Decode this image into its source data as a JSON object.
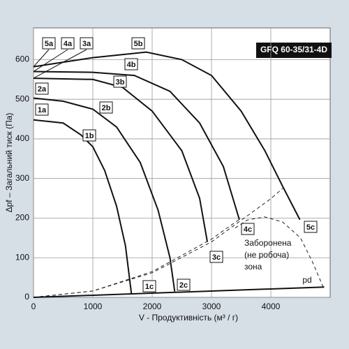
{
  "chart_data": {
    "type": "line",
    "title": "GFQ 60-35/31-4D",
    "x_label": "V - Продуктивність (м³ / г)",
    "y_label": "Δpf – Загальний тиск (Па)",
    "xlim": [
      0,
      5000
    ],
    "xticks": [
      0,
      1000,
      2000,
      3000,
      4000
    ],
    "ylim": [
      0,
      680
    ],
    "yticks": [
      0,
      100,
      200,
      300,
      400,
      500,
      600
    ],
    "grid": true,
    "series": [
      {
        "color": "#111111",
        "labels": [
          "1a",
          "1b",
          "1c"
        ],
        "x": [
          0,
          500,
          800,
          1000,
          1200,
          1400,
          1550,
          1650
        ],
        "values": [
          448,
          440,
          410,
          380,
          320,
          230,
          130,
          10
        ]
      },
      {
        "color": "#111111",
        "labels": [
          "2a",
          "2b",
          "2c"
        ],
        "x": [
          0,
          500,
          1000,
          1400,
          1800,
          2100,
          2300,
          2380
        ],
        "values": [
          503,
          495,
          475,
          430,
          340,
          220,
          100,
          15
        ]
      },
      {
        "color": "#111111",
        "labels": [
          "3a",
          "3b",
          "3c"
        ],
        "x": [
          0,
          1000,
          1500,
          2000,
          2500,
          2800,
          2930
        ],
        "values": [
          553,
          550,
          530,
          470,
          370,
          250,
          140
        ]
      },
      {
        "color": "#111111",
        "labels": [
          "4a",
          "4b",
          "4c"
        ],
        "x": [
          0,
          1000,
          1700,
          2300,
          2800,
          3200,
          3470
        ],
        "values": [
          570,
          568,
          560,
          520,
          440,
          330,
          196
        ]
      },
      {
        "color": "#111111",
        "labels": [
          "5a",
          "5b",
          "5c"
        ],
        "x": [
          0,
          1000,
          1900,
          2500,
          3000,
          3500,
          3900,
          4200,
          4490
        ],
        "values": [
          582,
          605,
          619,
          600,
          560,
          470,
          370,
          280,
          196
        ]
      }
    ],
    "pd_line": {
      "label": "pd",
      "x": [
        0,
        4900
      ],
      "values": [
        0,
        26
      ]
    },
    "dashed_lines": [
      {
        "x": [
          0,
          1000,
          2000,
          3000,
          4000,
          4200
        ],
        "values": [
          0,
          16,
          62,
          140,
          249,
          275
        ]
      },
      {
        "x": [
          0,
          1000,
          2000,
          3000,
          3500
        ],
        "values": [
          0,
          16,
          65,
          147,
          200
        ]
      },
      {
        "x": [
          3400,
          3600,
          3900,
          4200,
          4500,
          4700,
          4900
        ],
        "values": [
          175,
          195,
          203,
          190,
          150,
          90,
          20
        ]
      }
    ],
    "zone_text": [
      "Заборонена",
      "(не робоча)",
      "зона"
    ]
  }
}
